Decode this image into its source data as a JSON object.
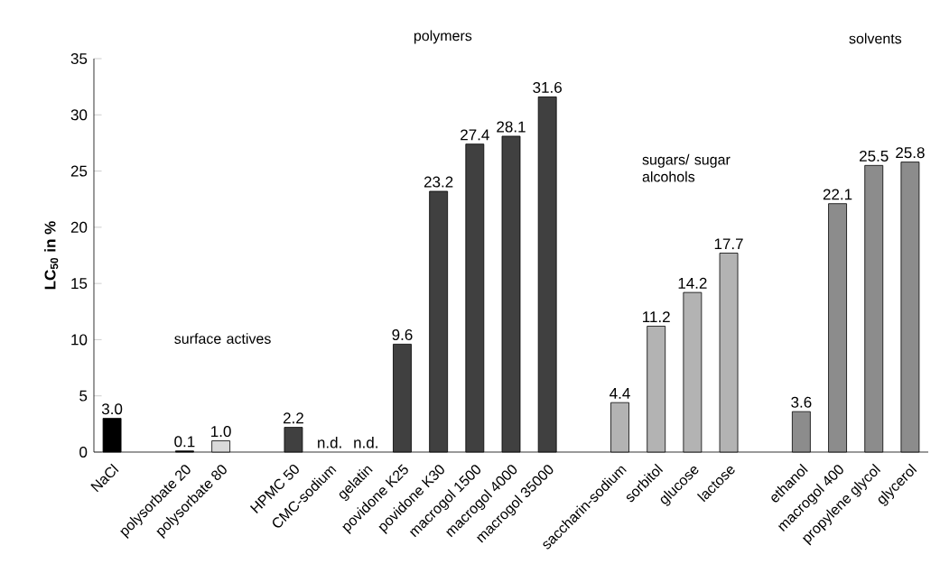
{
  "chart_data": {
    "type": "bar",
    "ylabel": "LC$_{50}$ in %",
    "categories": [
      "NaCl",
      null,
      "polysorbate 20",
      "polysorbate 80",
      null,
      "HPMC 50",
      "CMC-sodium",
      "gelatin",
      "povidone K25",
      "povidone K30",
      "macrogol 1500",
      "macrogol 4000",
      "macrogol 35000",
      null,
      "saccharin-sodium",
      "sorbitol",
      "glucose",
      "lactose",
      null,
      "ethanol",
      "macrogol 400",
      "propylene glycol",
      "glycerol"
    ],
    "values": [
      3.0,
      null,
      0.1,
      1.0,
      null,
      2.2,
      null,
      null,
      9.6,
      23.2,
      27.4,
      28.1,
      31.6,
      null,
      4.4,
      11.2,
      14.2,
      17.7,
      null,
      3.6,
      22.1,
      25.5,
      25.8
    ],
    "value_labels": [
      "3.0",
      null,
      "0.1",
      "1.0",
      null,
      "2.2",
      "n.d.",
      "n.d.",
      "9.6",
      "23.2",
      "27.4",
      "28.1",
      "31.6",
      null,
      "4.4",
      "11.2",
      "14.2",
      "17.7",
      null,
      "3.6",
      "22.1",
      "25.5",
      "25.8"
    ],
    "colors": [
      "#000000",
      null,
      "#000000",
      "#d9d9d9",
      null,
      "#404040",
      "#404040",
      "#404040",
      "#404040",
      "#404040",
      "#404040",
      "#404040",
      "#404040",
      null,
      "#b3b3b3",
      "#b3b3b3",
      "#b3b3b3",
      "#b3b3b3",
      null,
      "#8c8c8c",
      "#8c8c8c",
      "#8c8c8c",
      "#8c8c8c"
    ],
    "ylim": [
      0,
      35
    ],
    "yticks": [
      0,
      5,
      10,
      15,
      20,
      25,
      30,
      35
    ],
    "annotations": [
      "surface actives",
      "polymers",
      "sugars/ sugar alcohols",
      "solvents"
    ]
  }
}
